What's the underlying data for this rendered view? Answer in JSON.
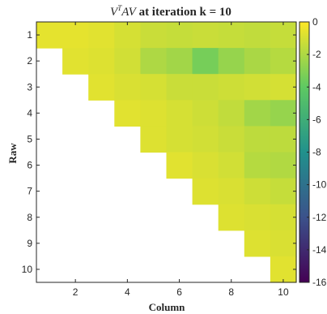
{
  "chart_data": {
    "type": "heatmap",
    "title": {
      "prefix": "V",
      "superscript": "T",
      "math_rest": "AV",
      "text": " at iteration k = 10"
    },
    "xlabel": "Column",
    "ylabel": "Raw",
    "x_ticks": [
      "2",
      "4",
      "6",
      "8",
      "10"
    ],
    "y_ticks": [
      "1",
      "2",
      "3",
      "4",
      "5",
      "6",
      "7",
      "8",
      "9",
      "10"
    ],
    "rows": 10,
    "cols": 10,
    "colorbar": {
      "range": [
        -16,
        0
      ],
      "ticks": [
        "0",
        "-2",
        "-4",
        "-6",
        "-8",
        "-10",
        "-12",
        "-14",
        "-16"
      ],
      "colormap": [
        "#440154",
        "#3b528b",
        "#21918c",
        "#5ec962",
        "#fde725"
      ]
    },
    "upper_triangular": true,
    "values": [
      [
        -0.6,
        -0.6,
        -0.7,
        -1.0,
        -1.3,
        -1.4,
        -1.3,
        -1.4,
        -1.5,
        -1.4
      ],
      [
        null,
        -0.7,
        -0.8,
        -1.1,
        -2.0,
        -2.3,
        -3.4,
        -2.6,
        -2.1,
        -1.8
      ],
      [
        null,
        null,
        -0.7,
        -0.9,
        -1.0,
        -1.3,
        -1.3,
        -1.2,
        -1.1,
        -1.0
      ],
      [
        null,
        null,
        null,
        -0.7,
        -0.8,
        -1.0,
        -1.2,
        -1.5,
        -2.3,
        -2.6
      ],
      [
        null,
        null,
        null,
        null,
        -0.8,
        -1.0,
        -1.1,
        -1.3,
        -1.6,
        -1.6
      ],
      [
        null,
        null,
        null,
        null,
        null,
        -0.7,
        -0.9,
        -1.1,
        -1.8,
        -1.9
      ],
      [
        null,
        null,
        null,
        null,
        null,
        null,
        -0.8,
        -0.9,
        -1.2,
        -1.4
      ],
      [
        null,
        null,
        null,
        null,
        null,
        null,
        null,
        -0.8,
        -0.9,
        -1.0
      ],
      [
        null,
        null,
        null,
        null,
        null,
        null,
        null,
        null,
        -0.8,
        -0.9
      ],
      [
        null,
        null,
        null,
        null,
        null,
        null,
        null,
        null,
        null,
        -0.7
      ]
    ]
  }
}
